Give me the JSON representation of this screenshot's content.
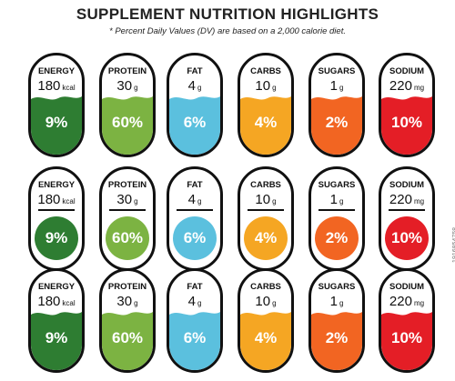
{
  "header": {
    "title": "SUPPLEMENT NUTRITION HIGHLIGHTS",
    "subtitle": "* Percent Daily Values (DV) are based on a 2,000 calorie diet."
  },
  "nutrients": [
    {
      "name": "ENERGY",
      "amount": "180",
      "unit": "kcal",
      "percent": "9%",
      "color": "#2e7d32"
    },
    {
      "name": "PROTEIN",
      "amount": "30",
      "unit": "g",
      "percent": "60%",
      "color": "#7cb342"
    },
    {
      "name": "FAT",
      "amount": "4",
      "unit": "g",
      "percent": "6%",
      "color": "#5bc0de"
    },
    {
      "name": "CARBS",
      "amount": "10",
      "unit": "g",
      "percent": "4%",
      "color": "#f5a623"
    },
    {
      "name": "SUGARS",
      "amount": "1",
      "unit": "g",
      "percent": "2%",
      "color": "#f26522"
    },
    {
      "name": "SODIUM",
      "amount": "220",
      "unit": "mg",
      "percent": "10%",
      "color": "#e41e26"
    }
  ],
  "watermark": "1916854758"
}
